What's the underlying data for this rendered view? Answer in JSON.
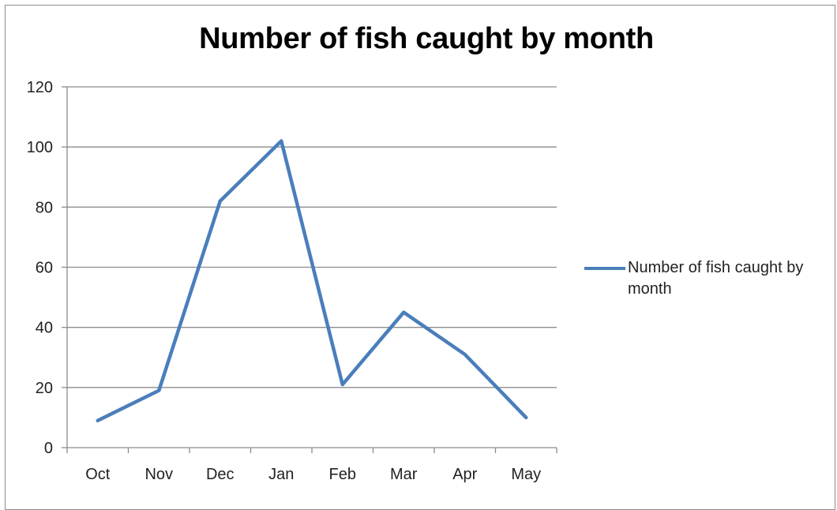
{
  "colors": {
    "line": "#4a7ebb",
    "grid": "#8c8c8c",
    "axis": "#8c8c8c"
  },
  "chart_data": {
    "type": "line",
    "title": "Number of fish caught by month",
    "xlabel": "",
    "ylabel": "",
    "categories": [
      "Oct",
      "Nov",
      "Dec",
      "Jan",
      "Feb",
      "Mar",
      "Apr",
      "May"
    ],
    "series": [
      {
        "name": "Number of fish caught by month",
        "values": [
          9,
          19,
          82,
          102,
          21,
          45,
          31,
          10
        ]
      }
    ],
    "ylim": [
      0,
      120
    ],
    "yticks": [
      0,
      20,
      40,
      60,
      80,
      100,
      120
    ],
    "grid": "horizontal",
    "legend": "right"
  }
}
